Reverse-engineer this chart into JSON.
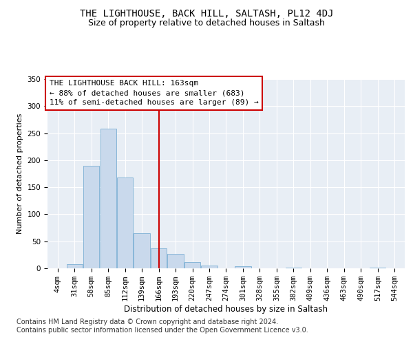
{
  "title": "THE LIGHTHOUSE, BACK HILL, SALTASH, PL12 4DJ",
  "subtitle": "Size of property relative to detached houses in Saltash",
  "xlabel": "Distribution of detached houses by size in Saltash",
  "ylabel": "Number of detached properties",
  "categories": [
    "4sqm",
    "31sqm",
    "58sqm",
    "85sqm",
    "112sqm",
    "139sqm",
    "166sqm",
    "193sqm",
    "220sqm",
    "247sqm",
    "274sqm",
    "301sqm",
    "328sqm",
    "355sqm",
    "382sqm",
    "409sqm",
    "436sqm",
    "463sqm",
    "490sqm",
    "517sqm",
    "544sqm"
  ],
  "values": [
    0,
    8,
    190,
    258,
    168,
    65,
    37,
    27,
    11,
    5,
    0,
    4,
    0,
    0,
    1,
    0,
    0,
    0,
    0,
    1,
    0
  ],
  "bar_color": "#c9d9ec",
  "bar_edge_color": "#7bafd4",
  "vline_x": 6.0,
  "vline_color": "#cc0000",
  "annotation_line1": "THE LIGHTHOUSE BACK HILL: 163sqm",
  "annotation_line2": "← 88% of detached houses are smaller (683)",
  "annotation_line3": "11% of semi-detached houses are larger (89) →",
  "ylim": [
    0,
    350
  ],
  "yticks": [
    0,
    50,
    100,
    150,
    200,
    250,
    300,
    350
  ],
  "bg_color": "#e8eef5",
  "grid_color": "#ffffff",
  "footer": "Contains HM Land Registry data © Crown copyright and database right 2024.\nContains public sector information licensed under the Open Government Licence v3.0.",
  "title_fontsize": 10,
  "subtitle_fontsize": 9,
  "annotation_fontsize": 8,
  "ylabel_fontsize": 8,
  "xlabel_fontsize": 8.5,
  "footer_fontsize": 7,
  "tick_fontsize": 7.5
}
